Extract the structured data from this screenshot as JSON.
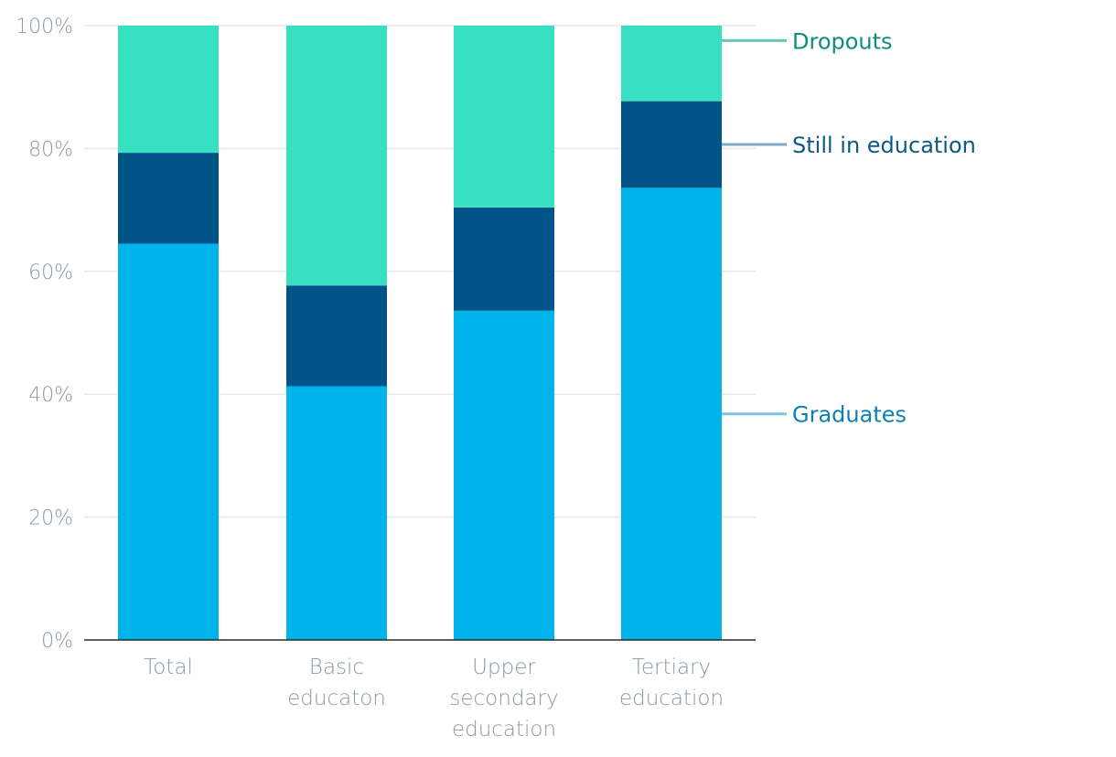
{
  "chart_data": {
    "type": "bar",
    "stacked": true,
    "categories": [
      [
        "Total"
      ],
      [
        "Basic",
        "educaton"
      ],
      [
        "Upper",
        "secondary",
        "education"
      ],
      [
        "Tertiary",
        "education"
      ]
    ],
    "series": [
      {
        "name": "Graduates",
        "color": "#00b3eb",
        "values": [
          64.5,
          41.3,
          53.6,
          73.6
        ]
      },
      {
        "name": "Still in education",
        "color": "#005488",
        "values": [
          14.8,
          16.4,
          16.8,
          14.1
        ]
      },
      {
        "name": "Dropouts",
        "color": "#38e0c2",
        "values": [
          20.7,
          42.3,
          29.6,
          12.3
        ]
      }
    ],
    "legend": [
      {
        "name": "Dropouts",
        "text_color": "#0b8f74",
        "line_color": "#6ec2b3"
      },
      {
        "name": "Still in education",
        "text_color": "#0d5985",
        "line_color": "#7fa9c4"
      },
      {
        "name": "Graduates",
        "text_color": "#0f7fb0",
        "line_color": "#7dc4de"
      }
    ],
    "ylim": [
      0,
      100
    ],
    "yticks": [
      "0%",
      "20%",
      "40%",
      "60%",
      "80%",
      "100%"
    ],
    "grid": true,
    "legend_placement": "right, inline labels"
  }
}
